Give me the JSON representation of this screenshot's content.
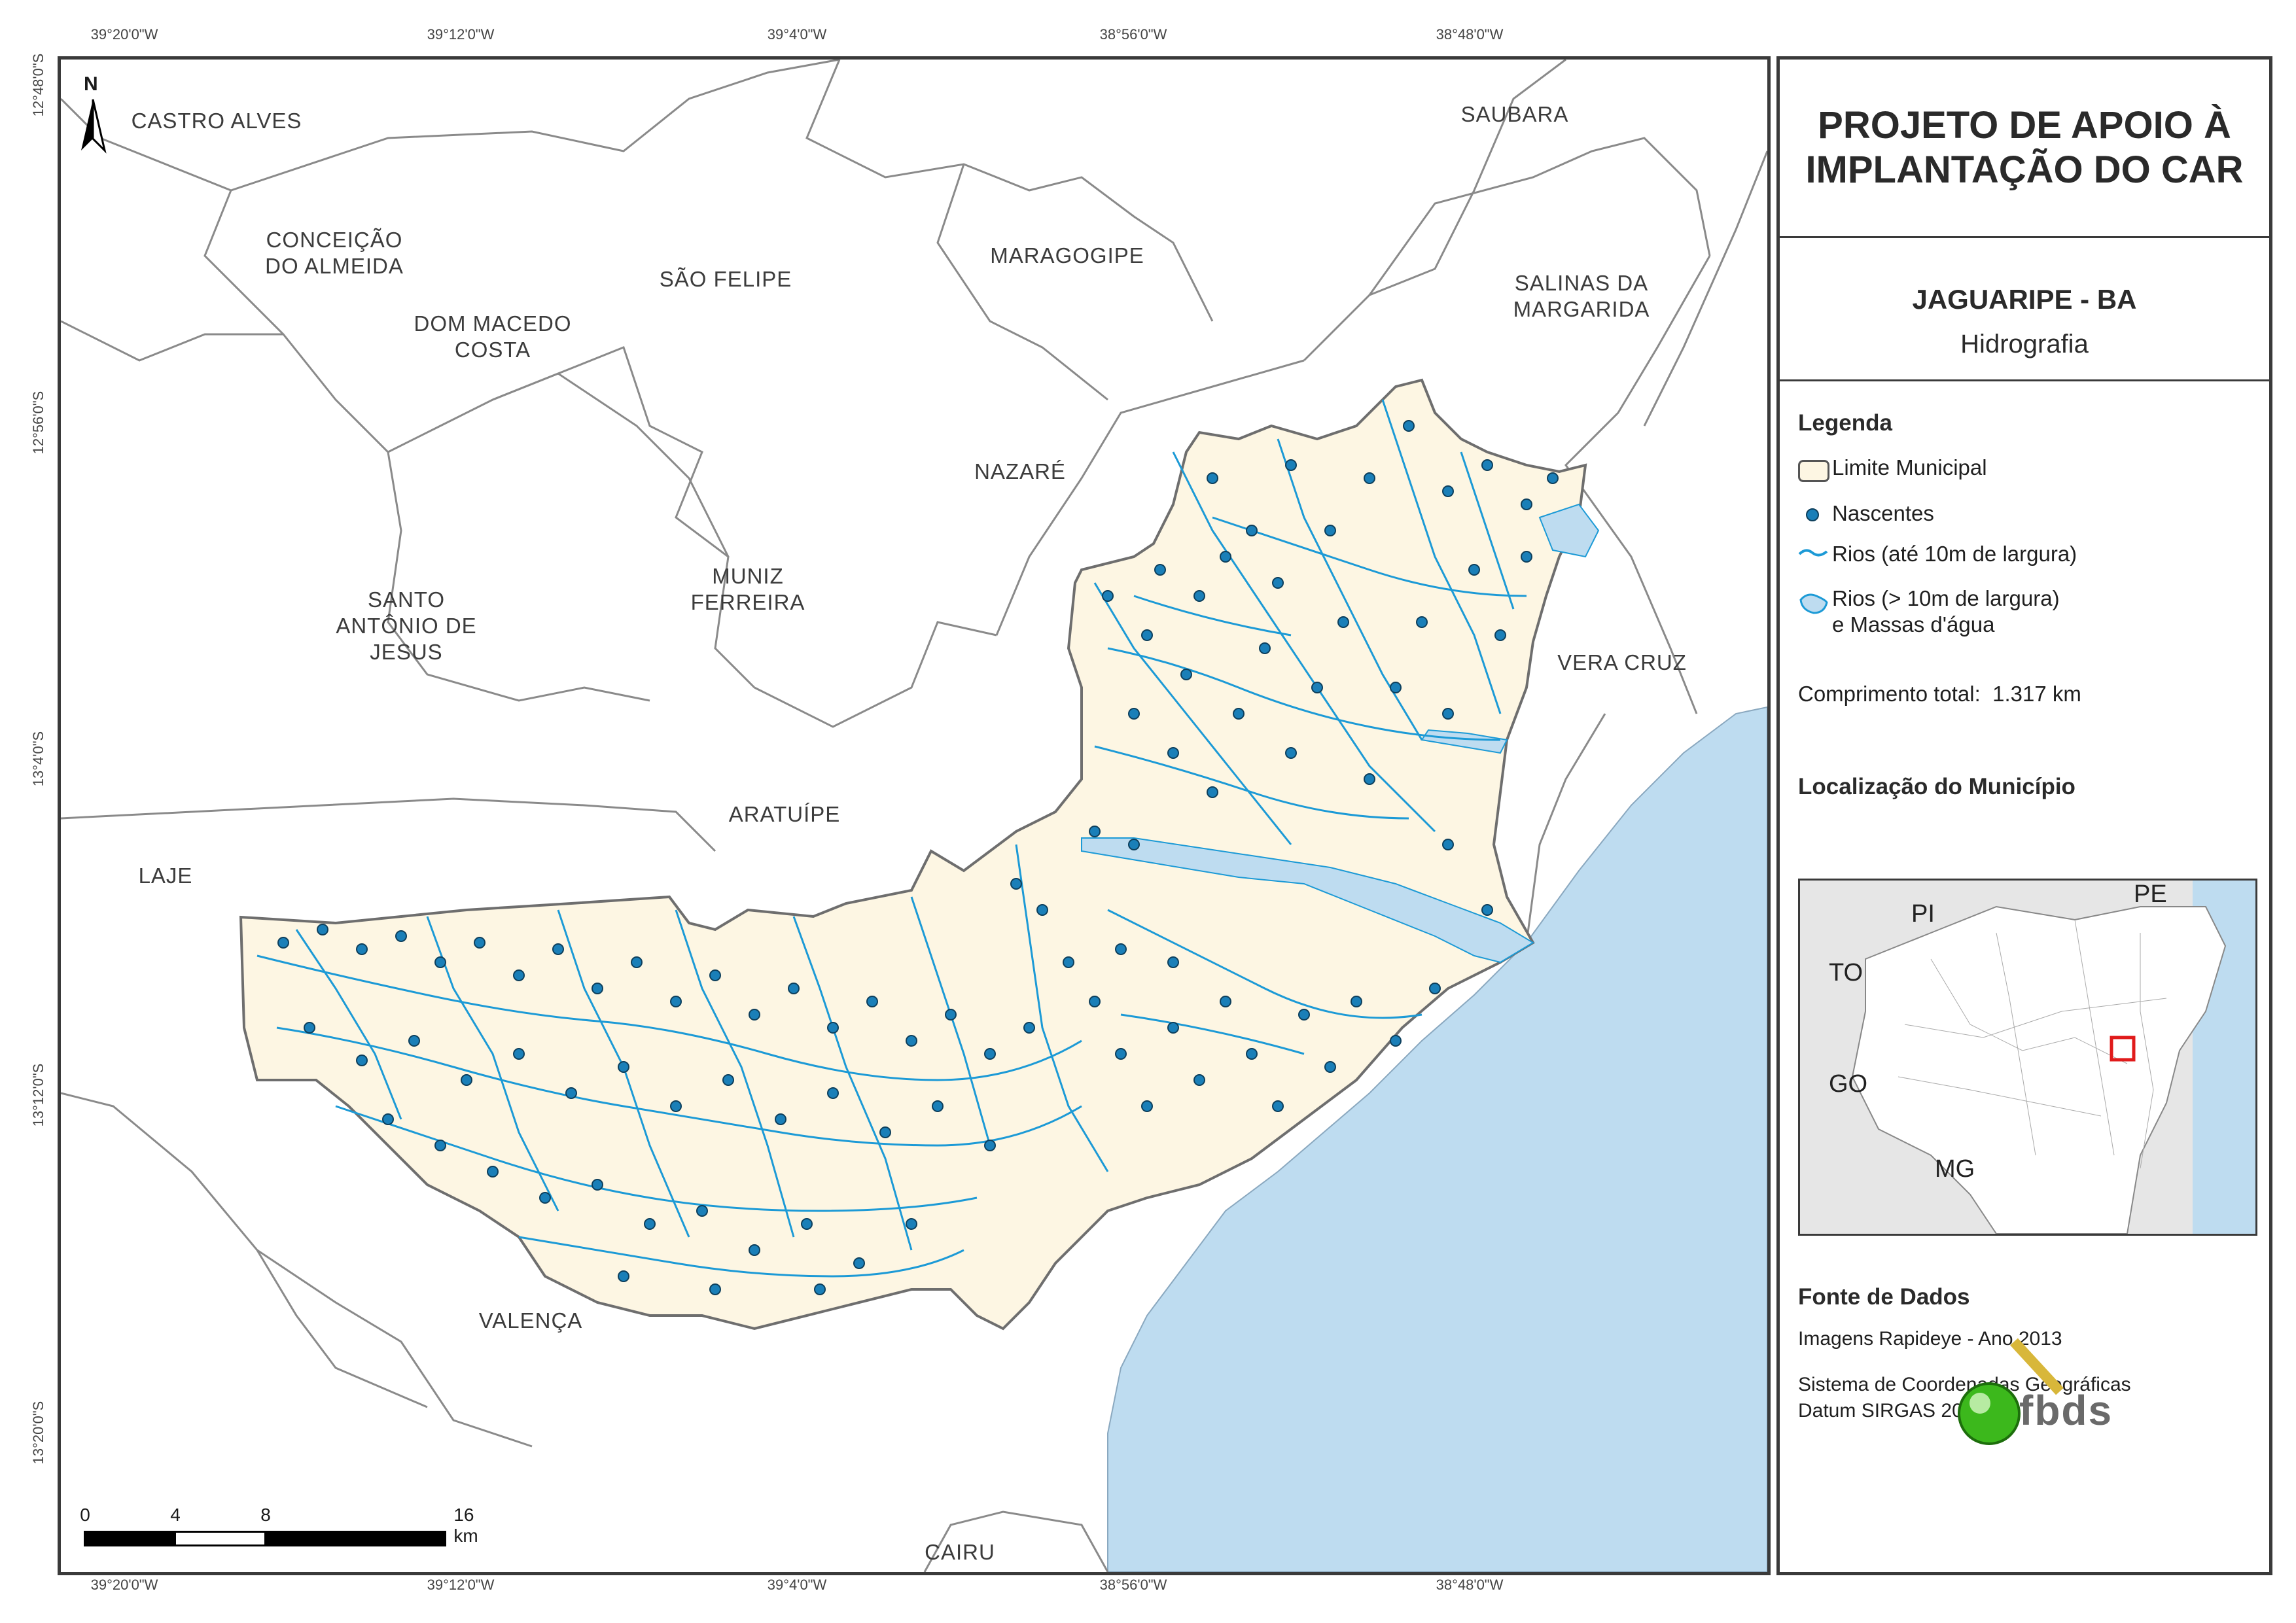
{
  "map": {
    "municipalities": [
      {
        "id": "castro-alves",
        "label": "CASTRO ALVES"
      },
      {
        "id": "conceicao",
        "label": "CONCEIÇÃO\nDO ALMEIDA"
      },
      {
        "id": "dom-macedo",
        "label": "DOM MACEDO\nCOSTA"
      },
      {
        "id": "sao-felipe",
        "label": "SÃO FELIPE"
      },
      {
        "id": "maragogipe",
        "label": "MARAGOGIPE"
      },
      {
        "id": "saubara",
        "label": "SAUBARA"
      },
      {
        "id": "salinas",
        "label": "SALINAS DA\nMARGARIDA"
      },
      {
        "id": "nazare",
        "label": "NAZARÉ"
      },
      {
        "id": "muniz",
        "label": "MUNIZ\nFERREIRA"
      },
      {
        "id": "santo-antonio",
        "label": "SANTO\nANTÔNIO DE\nJESUS"
      },
      {
        "id": "vera-cruz",
        "label": "VERA CRUZ"
      },
      {
        "id": "aratuipe",
        "label": "ARATUÍPE"
      },
      {
        "id": "laje",
        "label": "LAJE"
      },
      {
        "id": "valenca",
        "label": "VALENÇA"
      },
      {
        "id": "cairu",
        "label": "CAIRU"
      }
    ],
    "lon_labels": [
      "39°20'0\"W",
      "39°12'0\"W",
      "39°4'0\"W",
      "38°56'0\"W",
      "38°48'0\"W"
    ],
    "lat_labels": [
      "12°48'0\"S",
      "12°56'0\"S",
      "13°4'0\"S",
      "13°12'0\"S",
      "13°20'0\"S"
    ],
    "north": "N",
    "scale": {
      "labels": [
        "0",
        "4",
        "8",
        "16 km"
      ],
      "values_km": [
        0,
        4,
        8,
        16
      ]
    },
    "colors": {
      "municipality_fill": "#fdf6e3",
      "ocean": "#bedcf0",
      "river": "#1c9ad6",
      "spring": "#1a7fb8",
      "border": "#6e6e6e"
    }
  },
  "panel": {
    "title": "PROJETO DE APOIO À\nIMPLANTAÇÃO DO CAR",
    "municipality": "JAGUARIPE - BA",
    "theme": "Hidrografia",
    "legend_title": "Legenda",
    "legend": {
      "limit": "Limite Municipal",
      "springs": "Nascentes",
      "rivers_small": "Rios (até 10m de largura)",
      "rivers_large": "Rios (> 10m de largura)\ne Massas d'água",
      "total_length": "Comprimento total:  1.317 km"
    },
    "location_title": "Localização do Município",
    "inset_labels": {
      "pi": "PI",
      "pe": "PE",
      "to": "TO",
      "go": "GO",
      "mg": "MG"
    },
    "source_title": "Fonte de Dados",
    "source_1": "Imagens Rapideye - Ano 2013",
    "source_2": "Sistema de Coordenadas Geográficas\nDatum SIRGAS 2000",
    "logo": "fbds"
  }
}
